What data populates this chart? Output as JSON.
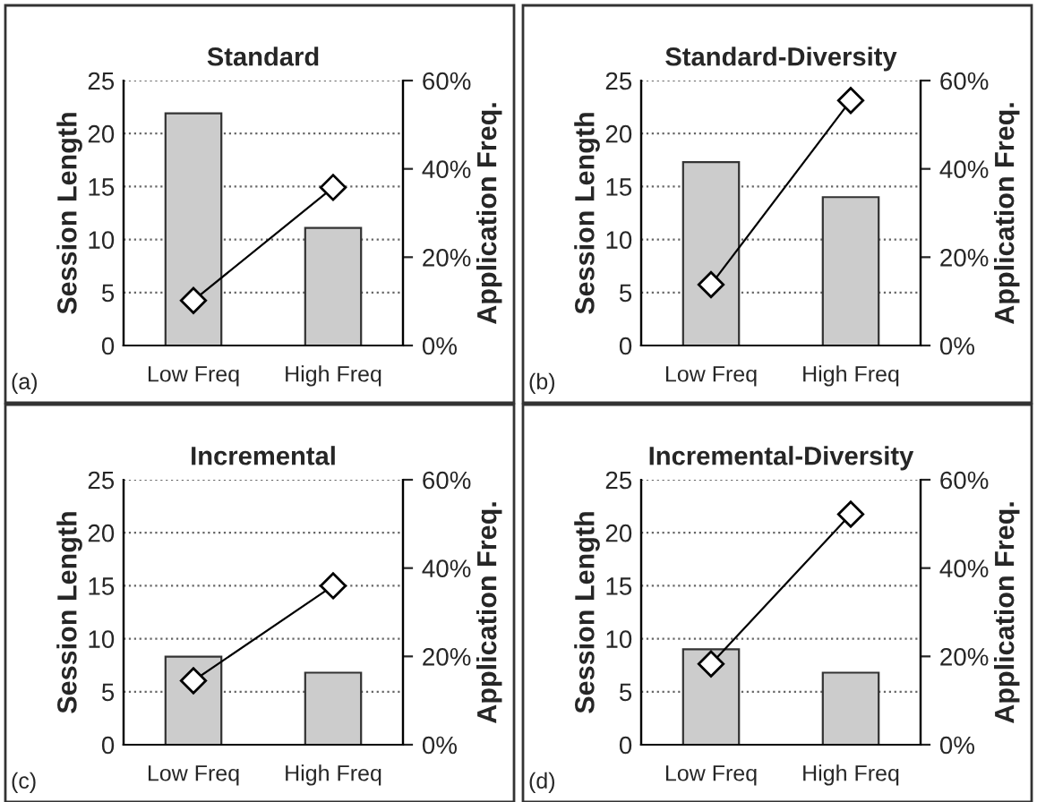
{
  "chart_data": [
    {
      "type": "bar",
      "title": "Standard",
      "ylabel": "Session Length",
      "y2label": "Application Freq.",
      "categories": [
        "Low Freq",
        "High Freq"
      ],
      "series": [
        {
          "color": "#cccccc",
          "values": [
            21.9,
            11.1
          ]
        },
        {
          "type": "line",
          "axis": "y2",
          "color": "#000000",
          "marker": "diamond",
          "values": [
            10.2,
            35.8
          ]
        }
      ],
      "ylim": [
        0,
        25
      ],
      "yticks": [
        0,
        5,
        10,
        15,
        20,
        25
      ],
      "y2lim": [
        0,
        60
      ],
      "y2ticks": [
        {
          "value": 0,
          "label": "0%"
        },
        {
          "value": 20,
          "label": "20%"
        },
        {
          "value": 40,
          "label": "40%"
        },
        {
          "value": 60,
          "label": "60%"
        }
      ],
      "grid": "y",
      "annotations": [
        "(a)"
      ]
    },
    {
      "type": "bar",
      "title": "Standard-Diversity",
      "ylabel": "Session Length",
      "y2label": "Application Freq.",
      "categories": [
        "Low Freq",
        "High Freq"
      ],
      "series": [
        {
          "color": "#cccccc",
          "values": [
            17.3,
            14.0
          ]
        },
        {
          "type": "line",
          "axis": "y2",
          "color": "#000000",
          "marker": "diamond",
          "values": [
            13.8,
            55.5
          ]
        }
      ],
      "ylim": [
        0,
        25
      ],
      "yticks": [
        0,
        5,
        10,
        15,
        20,
        25
      ],
      "y2lim": [
        0,
        60
      ],
      "y2ticks": [
        {
          "value": 0,
          "label": "0%"
        },
        {
          "value": 20,
          "label": "20%"
        },
        {
          "value": 40,
          "label": "40%"
        },
        {
          "value": 60,
          "label": "60%"
        }
      ],
      "grid": "y",
      "annotations": [
        "(b)"
      ]
    },
    {
      "type": "bar",
      "title": "Incremental",
      "ylabel": "Session Length",
      "y2label": "Application Freq.",
      "categories": [
        "Low Freq",
        "High Freq"
      ],
      "series": [
        {
          "color": "#cccccc",
          "values": [
            8.3,
            6.8
          ]
        },
        {
          "type": "line",
          "axis": "y2",
          "color": "#000000",
          "marker": "diamond",
          "values": [
            14.5,
            36.0
          ]
        }
      ],
      "ylim": [
        0,
        25
      ],
      "yticks": [
        0,
        5,
        10,
        15,
        20,
        25
      ],
      "y2lim": [
        0,
        60
      ],
      "y2ticks": [
        {
          "value": 0,
          "label": "0%"
        },
        {
          "value": 20,
          "label": "20%"
        },
        {
          "value": 40,
          "label": "40%"
        },
        {
          "value": 60,
          "label": "60%"
        }
      ],
      "grid": "y",
      "annotations": [
        "(c)"
      ]
    },
    {
      "type": "bar",
      "title": "Incremental-Diversity",
      "ylabel": "Session Length",
      "y2label": "Application Freq.",
      "categories": [
        "Low Freq",
        "High Freq"
      ],
      "series": [
        {
          "color": "#cccccc",
          "values": [
            9.0,
            6.8
          ]
        },
        {
          "type": "line",
          "axis": "y2",
          "color": "#000000",
          "marker": "diamond",
          "values": [
            18.3,
            52.2
          ]
        }
      ],
      "ylim": [
        0,
        25
      ],
      "yticks": [
        0,
        5,
        10,
        15,
        20,
        25
      ],
      "y2lim": [
        0,
        60
      ],
      "y2ticks": [
        {
          "value": 0,
          "label": "0%"
        },
        {
          "value": 20,
          "label": "20%"
        },
        {
          "value": 40,
          "label": "40%"
        },
        {
          "value": 60,
          "label": "60%"
        }
      ],
      "grid": "y",
      "annotations": [
        "(d)"
      ]
    }
  ]
}
